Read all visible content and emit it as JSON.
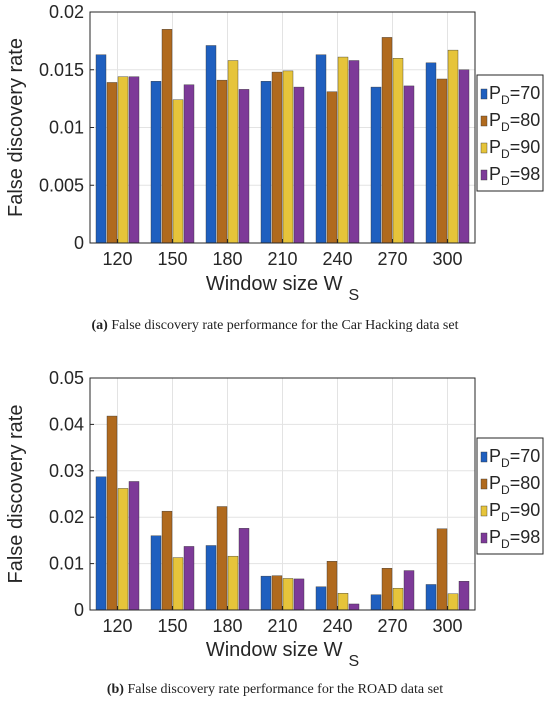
{
  "chart_data": [
    {
      "type": "bar",
      "title": "",
      "xlabel": "Window size W",
      "xlabel_sub": "S",
      "ylabel": "False discovery rate",
      "categories": [
        "120",
        "150",
        "180",
        "210",
        "240",
        "270",
        "300"
      ],
      "ylim": [
        0,
        0.02
      ],
      "yticks": [
        0,
        0.005,
        0.01,
        0.015,
        0.02
      ],
      "ytick_labels": [
        "0",
        "0.005",
        "0.01",
        "0.015",
        "0.02"
      ],
      "grid": true,
      "legend_position": "right",
      "series": [
        {
          "name": "P",
          "name_sub": "D",
          "name_suffix": "=70",
          "color": "#1f5fbf",
          "values": [
            0.0163,
            0.014,
            0.0171,
            0.014,
            0.0163,
            0.0135,
            0.0156
          ]
        },
        {
          "name": "P",
          "name_sub": "D",
          "name_suffix": "=80",
          "color": "#b06a1e",
          "values": [
            0.0139,
            0.0185,
            0.0141,
            0.0148,
            0.0131,
            0.0178,
            0.0142
          ]
        },
        {
          "name": "P",
          "name_sub": "D",
          "name_suffix": "=90",
          "color": "#e6c43a",
          "values": [
            0.0144,
            0.0124,
            0.0158,
            0.0149,
            0.0161,
            0.016,
            0.0167
          ]
        },
        {
          "name": "P",
          "name_sub": "D",
          "name_suffix": "=98",
          "color": "#7d3a98",
          "values": [
            0.0144,
            0.0137,
            0.0133,
            0.0135,
            0.0158,
            0.0136,
            0.015
          ]
        }
      ]
    },
    {
      "type": "bar",
      "title": "",
      "xlabel": "Window size W",
      "xlabel_sub": "S",
      "ylabel": "False discovery rate",
      "categories": [
        "120",
        "150",
        "180",
        "210",
        "240",
        "270",
        "300"
      ],
      "ylim": [
        0,
        0.05
      ],
      "yticks": [
        0,
        0.01,
        0.02,
        0.03,
        0.04,
        0.05
      ],
      "ytick_labels": [
        "0",
        "0.01",
        "0.02",
        "0.03",
        "0.04",
        "0.05"
      ],
      "grid": true,
      "legend_position": "right",
      "series": [
        {
          "name": "P",
          "name_sub": "D",
          "name_suffix": "=70",
          "color": "#1f5fbf",
          "values": [
            0.0287,
            0.016,
            0.0139,
            0.0073,
            0.005,
            0.0033,
            0.0055
          ]
        },
        {
          "name": "P",
          "name_sub": "D",
          "name_suffix": "=80",
          "color": "#b06a1e",
          "values": [
            0.0418,
            0.0213,
            0.0223,
            0.0074,
            0.0105,
            0.009,
            0.0175
          ]
        },
        {
          "name": "P",
          "name_sub": "D",
          "name_suffix": "=90",
          "color": "#e6c43a",
          "values": [
            0.0262,
            0.0113,
            0.0116,
            0.0068,
            0.0036,
            0.0047,
            0.0035
          ]
        },
        {
          "name": "P",
          "name_sub": "D",
          "name_suffix": "=98",
          "color": "#7d3a98",
          "values": [
            0.0277,
            0.0137,
            0.0176,
            0.0067,
            0.0013,
            0.0085,
            0.0062
          ]
        }
      ]
    }
  ],
  "captions": [
    {
      "letter": "(a)",
      "text": "False discovery rate performance for the Car Hacking data set"
    },
    {
      "letter": "(b)",
      "text": "False discovery rate performance for the ROAD data set"
    }
  ]
}
